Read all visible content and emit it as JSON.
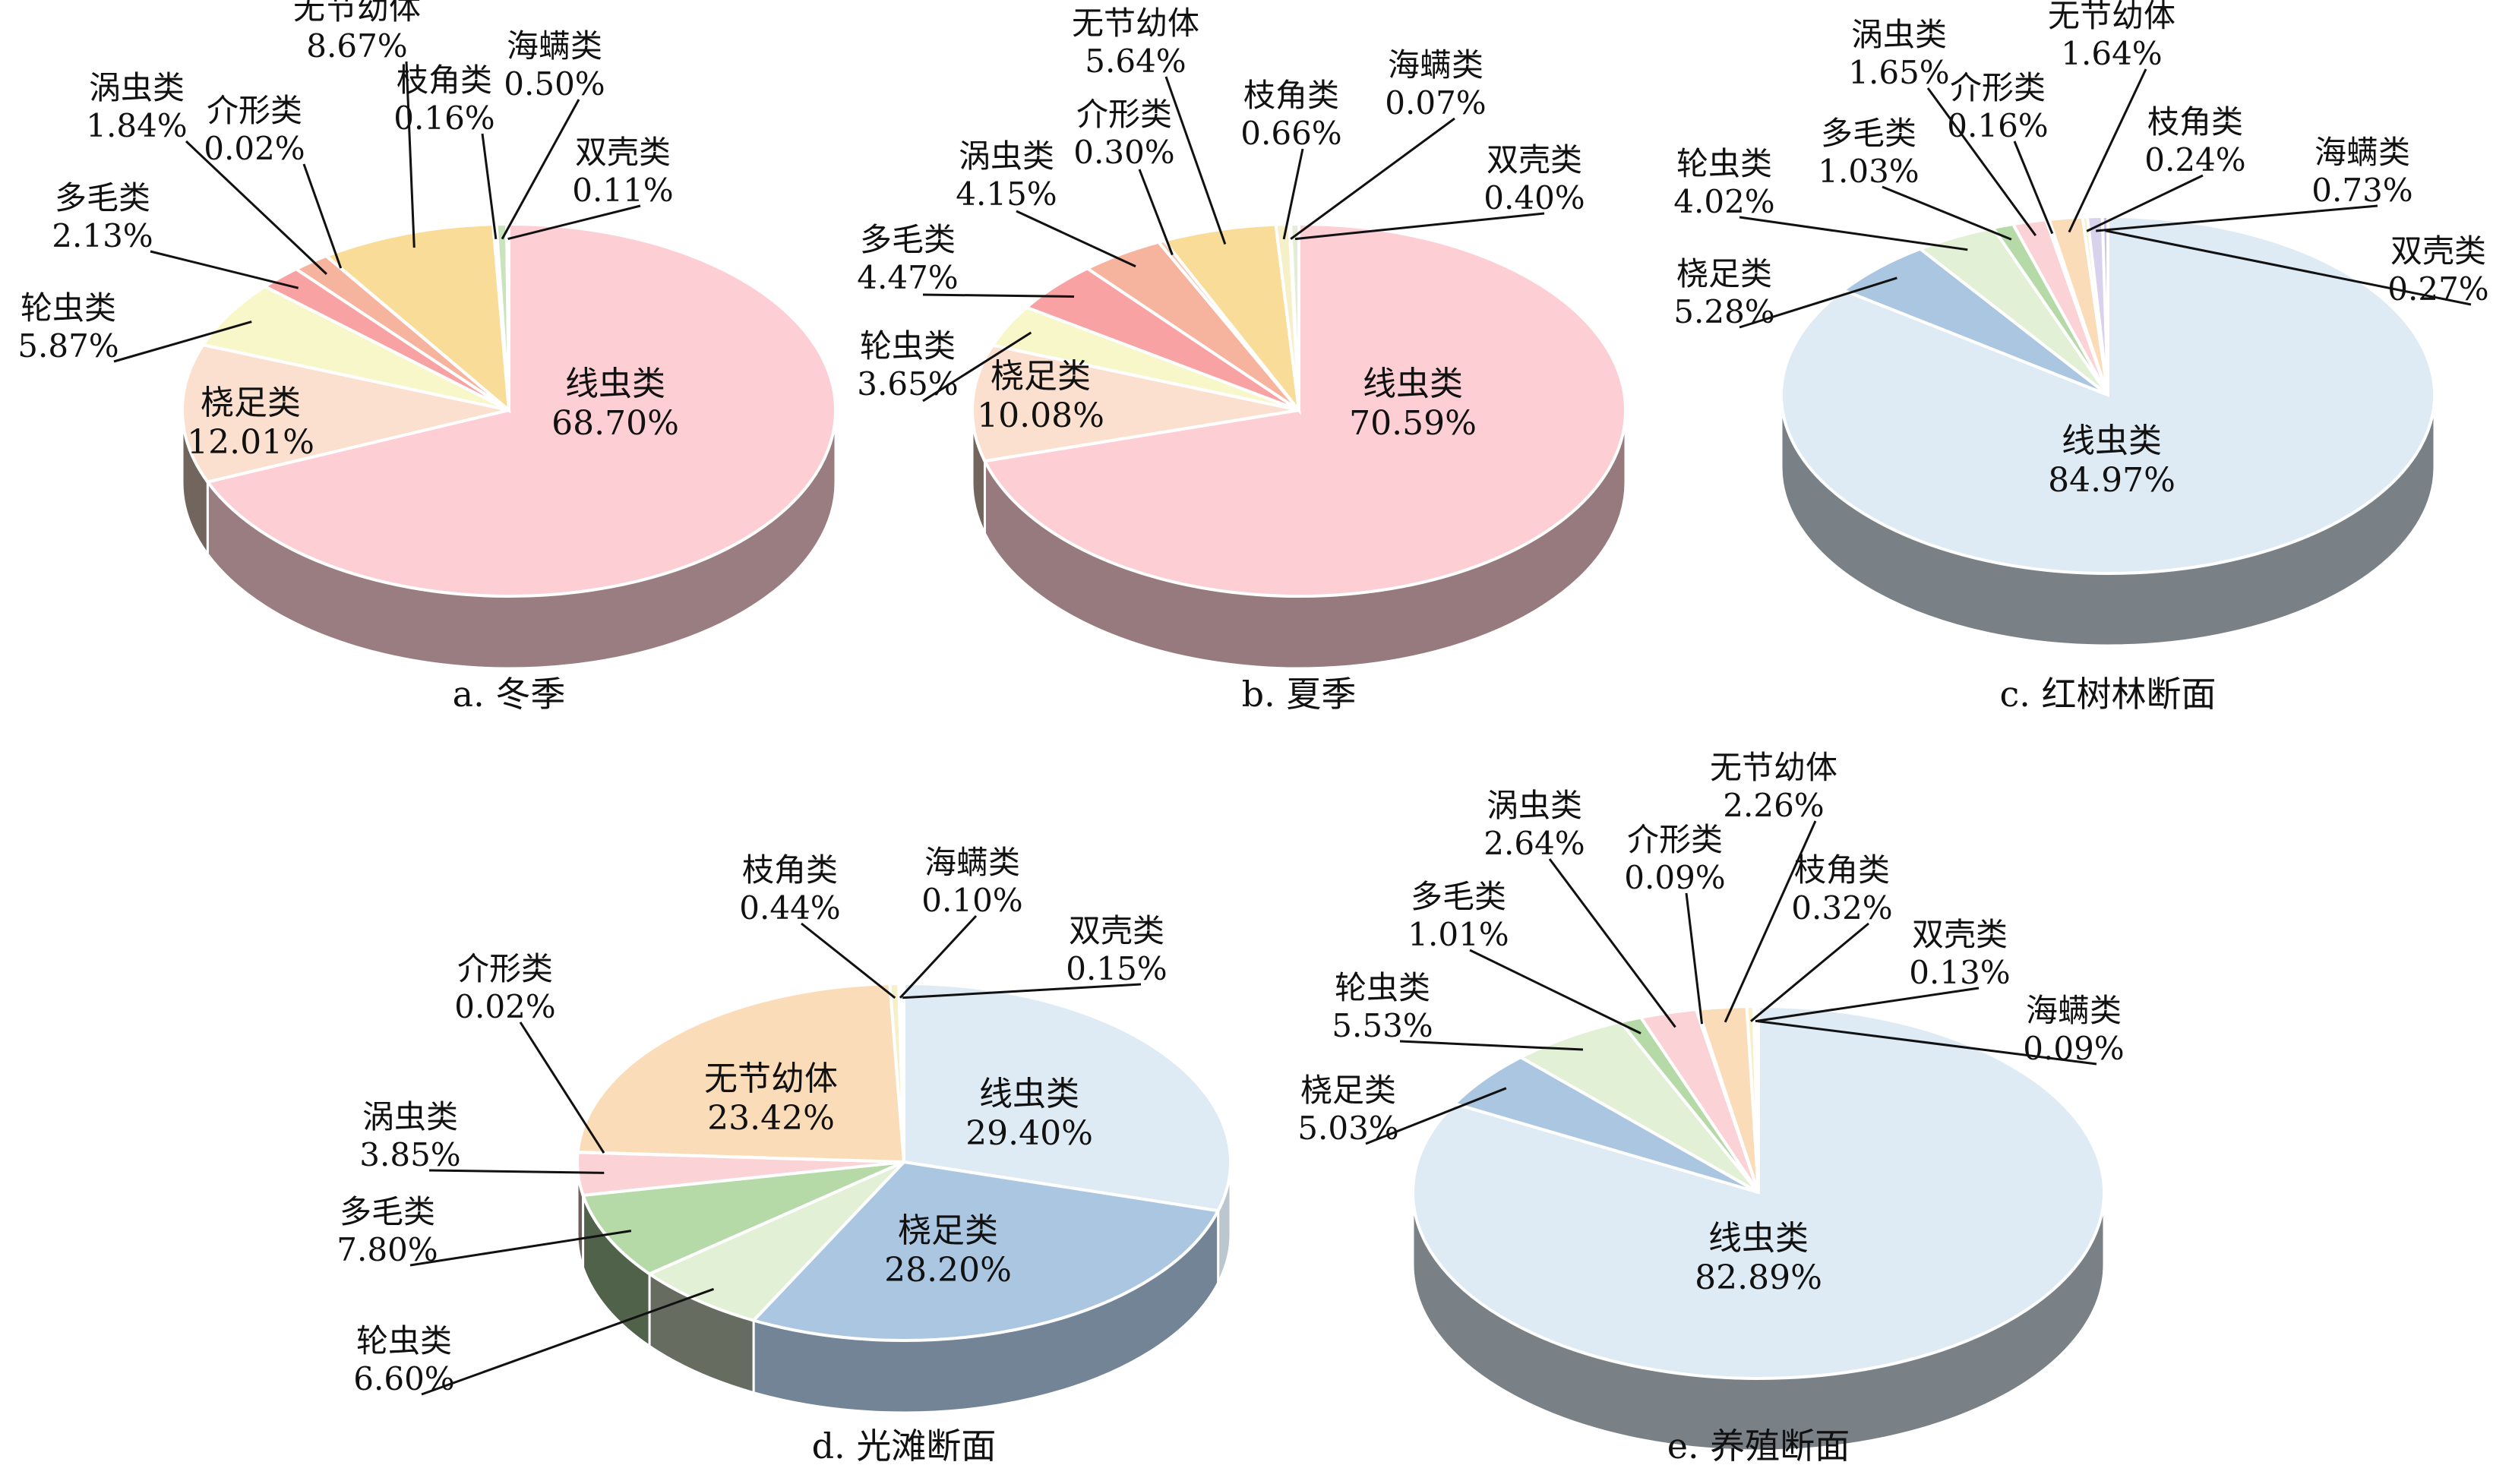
{
  "chart_data": [
    {
      "type": "pie",
      "caption": "a. 冬季",
      "slices": [
        {
          "name": "线虫类",
          "value": 68.7,
          "label": "68.70%",
          "color": "#fdced3"
        },
        {
          "name": "桡足类",
          "value": 12.01,
          "label": "12.01%",
          "color": "#fbe0cf"
        },
        {
          "name": "轮虫类",
          "value": 5.87,
          "label": "5.87%",
          "color": "#f8f7c9"
        },
        {
          "name": "多毛类",
          "value": 2.13,
          "label": "2.13%",
          "color": "#f9a2a3"
        },
        {
          "name": "涡虫类",
          "value": 1.84,
          "label": "1.84%",
          "color": "#f6b49f"
        },
        {
          "name": "介形类",
          "value": 0.02,
          "label": "0.02%",
          "color": "#f3c9b5"
        },
        {
          "name": "无节幼体",
          "value": 8.67,
          "label": "8.67%",
          "color": "#f8dc97"
        },
        {
          "name": "枝角类",
          "value": 0.16,
          "label": "0.16%",
          "color": "#f5f0c8"
        },
        {
          "name": "海螨类",
          "value": 0.5,
          "label": "0.50%",
          "color": "#c9e3bd"
        },
        {
          "name": "双壳类",
          "value": 0.11,
          "label": "0.11%",
          "color": "#e3edd5"
        }
      ]
    },
    {
      "type": "pie",
      "caption": "b. 夏季",
      "slices": [
        {
          "name": "线虫类",
          "value": 70.59,
          "label": "70.59%",
          "color": "#fdced3"
        },
        {
          "name": "桡足类",
          "value": 10.08,
          "label": "10.08%",
          "color": "#fbe0cf"
        },
        {
          "name": "轮虫类",
          "value": 3.65,
          "label": "3.65%",
          "color": "#f8f7c9"
        },
        {
          "name": "多毛类",
          "value": 4.47,
          "label": "4.47%",
          "color": "#f9a2a3"
        },
        {
          "name": "涡虫类",
          "value": 4.15,
          "label": "4.15%",
          "color": "#f6b49f"
        },
        {
          "name": "介形类",
          "value": 0.3,
          "label": "0.30%",
          "color": "#f3c9b5"
        },
        {
          "name": "无节幼体",
          "value": 5.64,
          "label": "5.64%",
          "color": "#f8dc97"
        },
        {
          "name": "枝角类",
          "value": 0.66,
          "label": "0.66%",
          "color": "#f5f0c8"
        },
        {
          "name": "海螨类",
          "value": 0.07,
          "label": "0.07%",
          "color": "#c9e3bd"
        },
        {
          "name": "双壳类",
          "value": 0.4,
          "label": "0.40%",
          "color": "#e3edd5"
        }
      ]
    },
    {
      "type": "pie",
      "caption": "c. 红树林断面",
      "slices": [
        {
          "name": "线虫类",
          "value": 84.97,
          "label": "84.97%",
          "color": "#deeaf4"
        },
        {
          "name": "桡足类",
          "value": 5.28,
          "label": "5.28%",
          "color": "#abc6e0"
        },
        {
          "name": "轮虫类",
          "value": 4.02,
          "label": "4.02%",
          "color": "#e2f0d6"
        },
        {
          "name": "多毛类",
          "value": 1.03,
          "label": "1.03%",
          "color": "#b5d9a7"
        },
        {
          "name": "涡虫类",
          "value": 1.65,
          "label": "1.65%",
          "color": "#fbd2d5"
        },
        {
          "name": "介形类",
          "value": 0.16,
          "label": "0.16%",
          "color": "#f3c9b5"
        },
        {
          "name": "无节幼体",
          "value": 1.64,
          "label": "1.64%",
          "color": "#fbdcb8"
        },
        {
          "name": "枝角类",
          "value": 0.24,
          "label": "0.24%",
          "color": "#f5f0c8"
        },
        {
          "name": "海螨类",
          "value": 0.73,
          "label": "0.73%",
          "color": "#d9d2ec"
        },
        {
          "name": "双壳类",
          "value": 0.27,
          "label": "0.27%",
          "color": "#c9c3e4"
        }
      ]
    },
    {
      "type": "pie",
      "caption": "d. 光滩断面",
      "slices": [
        {
          "name": "线虫类",
          "value": 29.4,
          "label": "29.40%",
          "color": "#deeaf4"
        },
        {
          "name": "桡足类",
          "value": 28.2,
          "label": "28.20%",
          "color": "#abc6e0"
        },
        {
          "name": "轮虫类",
          "value": 6.6,
          "label": "6.60%",
          "color": "#e2f0d6"
        },
        {
          "name": "多毛类",
          "value": 7.8,
          "label": "7.80%",
          "color": "#b5d9a7"
        },
        {
          "name": "涡虫类",
          "value": 3.85,
          "label": "3.85%",
          "color": "#fbd2d5"
        },
        {
          "name": "介形类",
          "value": 0.02,
          "label": "0.02%",
          "color": "#f3c9b5"
        },
        {
          "name": "无节幼体",
          "value": 23.42,
          "label": "23.42%",
          "color": "#fbdcb8"
        },
        {
          "name": "枝角类",
          "value": 0.44,
          "label": "0.44%",
          "color": "#f5f0c8"
        },
        {
          "name": "海螨类",
          "value": 0.1,
          "label": "0.10%",
          "color": "#d9d2ec"
        },
        {
          "name": "双壳类",
          "value": 0.15,
          "label": "0.15%",
          "color": "#c9c3e4"
        }
      ]
    },
    {
      "type": "pie",
      "caption": "e. 养殖断面",
      "slices": [
        {
          "name": "线虫类",
          "value": 82.89,
          "label": "82.89%",
          "color": "#deeaf4"
        },
        {
          "name": "桡足类",
          "value": 5.03,
          "label": "5.03%",
          "color": "#abc6e0"
        },
        {
          "name": "轮虫类",
          "value": 5.53,
          "label": "5.53%",
          "color": "#e2f0d6"
        },
        {
          "name": "多毛类",
          "value": 1.01,
          "label": "1.01%",
          "color": "#b5d9a7"
        },
        {
          "name": "涡虫类",
          "value": 2.64,
          "label": "2.64%",
          "color": "#fbd2d5"
        },
        {
          "name": "介形类",
          "value": 0.09,
          "label": "0.09%",
          "color": "#f3c9b5"
        },
        {
          "name": "无节幼体",
          "value": 2.26,
          "label": "2.26%",
          "color": "#fbdcb8"
        },
        {
          "name": "枝角类",
          "value": 0.32,
          "label": "0.32%",
          "color": "#f5f0c8"
        },
        {
          "name": "双壳类",
          "value": 0.13,
          "label": "0.13%",
          "color": "#c9c3e4"
        },
        {
          "name": "海螨类",
          "value": 0.09,
          "label": "0.09%",
          "color": "#d9d2ec"
        }
      ]
    }
  ]
}
